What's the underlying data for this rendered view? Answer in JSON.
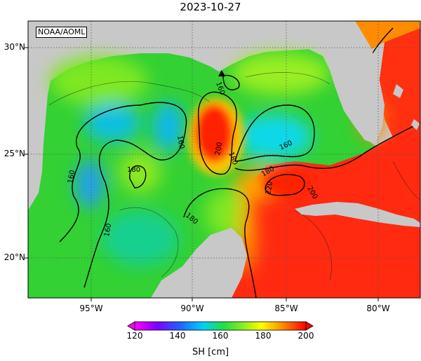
{
  "map": {
    "title": "2023-10-27",
    "credit": "NOAA/AOML",
    "extent": {
      "lon_min": -98.5,
      "lon_max": -78.0,
      "lat_min": 18.0,
      "lat_max": 31.2
    },
    "lon_ticks": [
      {
        "value": -95,
        "label": "95°W"
      },
      {
        "value": -90,
        "label": "90°W"
      },
      {
        "value": -85,
        "label": "85°W"
      },
      {
        "value": -80,
        "label": "80°W"
      }
    ],
    "lat_ticks": [
      {
        "value": 30,
        "label": "30°N"
      },
      {
        "value": 25,
        "label": "25°N"
      },
      {
        "value": 20,
        "label": "20°N"
      }
    ],
    "contour_labels": [
      "160",
      "160",
      "160",
      "160",
      "160",
      "180",
      "180",
      "180",
      "180",
      "200",
      "200",
      "220"
    ],
    "colors": {
      "land": "#c8c8c8",
      "ocean_base": "#33d133",
      "grid": "#555555"
    },
    "marker": "triangle-marker"
  },
  "colorbar": {
    "title": "SH [cm]",
    "tick_labels": [
      "120",
      "140",
      "160",
      "180",
      "200"
    ],
    "range": [
      120,
      200
    ],
    "extend": "both",
    "stops": [
      "#ff00ff",
      "#8000ff",
      "#2060ff",
      "#00d0ff",
      "#20e040",
      "#90ee20",
      "#ffff00",
      "#ff9000",
      "#ff0000"
    ]
  }
}
